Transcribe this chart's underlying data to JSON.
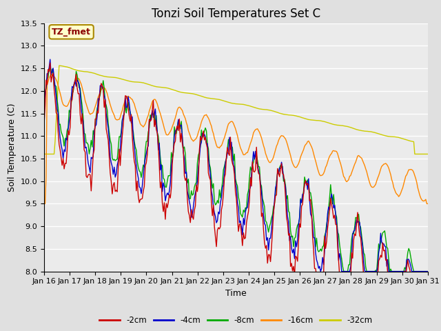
{
  "title": "Tonzi Soil Temperatures Set C",
  "xlabel": "Time",
  "ylabel": "Soil Temperature (C)",
  "ylim": [
    8.0,
    13.5
  ],
  "annotation": "TZ_fmet",
  "legend_labels": [
    "-2cm",
    "-4cm",
    "-8cm",
    "-16cm",
    "-32cm"
  ],
  "legend_colors": [
    "#cc0000",
    "#0000cc",
    "#00aa00",
    "#ff8800",
    "#cccc00"
  ],
  "xtick_labels": [
    "Jan 16",
    "Jan 17",
    "Jan 18",
    "Jan 19",
    "Jan 20",
    "Jan 21",
    "Jan 22",
    "Jan 23",
    "Jan 24",
    "Jan 25",
    "Jan 26",
    "Jan 27",
    "Jan 28",
    "Jan 29",
    "Jan 30",
    "Jan 31"
  ],
  "bg_color": "#e0e0e0",
  "plot_bg_color": "#ebebeb",
  "title_fontsize": 12,
  "label_fontsize": 9,
  "tick_fontsize": 8,
  "linewidth": 1.0
}
